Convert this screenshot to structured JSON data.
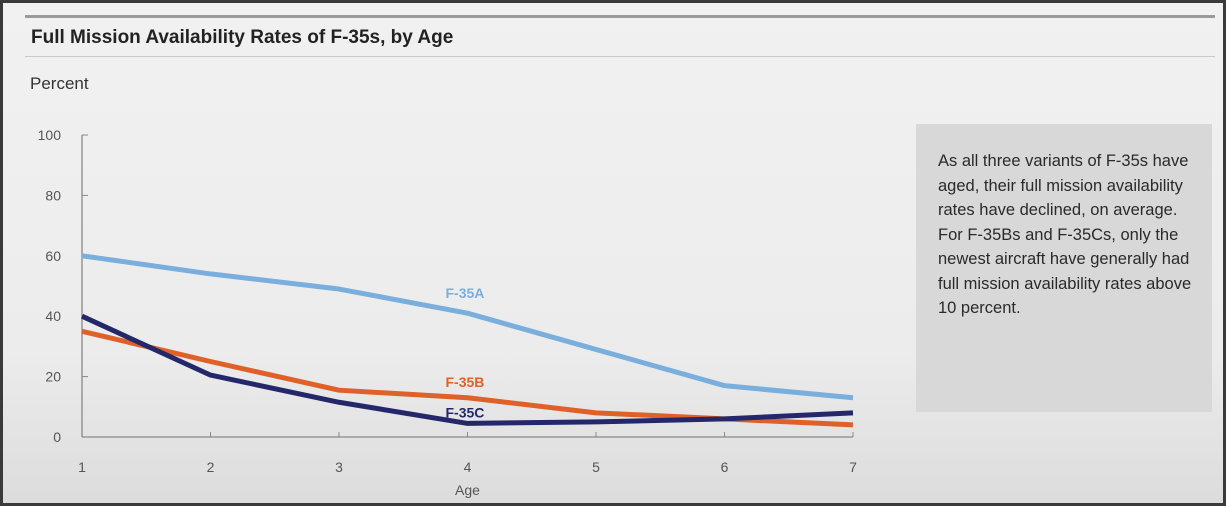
{
  "title": "Full Mission Availability Rates of F-35s, by Age",
  "note": "As all three variants of F-35s have aged, their full mission availability rates have declined, on average. For F-35Bs and F-35Cs, only the newest aircraft have generally had full mission availability rates above 10 percent.",
  "chart_data": {
    "type": "line",
    "title": "Full Mission Availability Rates of F-35s, by Age",
    "xlabel": "Age",
    "ylabel": "Percent",
    "x": [
      1,
      2,
      3,
      4,
      5,
      6,
      7
    ],
    "xlim": [
      1,
      7
    ],
    "ylim": [
      0,
      100
    ],
    "yticks": [
      0,
      20,
      40,
      60,
      80,
      100
    ],
    "grid": false,
    "legend": "inline labels",
    "series": [
      {
        "name": "F-35A",
        "color": "#7aaedc",
        "values": [
          60,
          54,
          49,
          41,
          29,
          17,
          13
        ]
      },
      {
        "name": "F-35B",
        "color": "#e0602a",
        "values": [
          35,
          25,
          15.5,
          13,
          8,
          6,
          4
        ]
      },
      {
        "name": "F-35C",
        "color": "#24286a",
        "values": [
          40,
          20.5,
          11.5,
          4.5,
          5,
          6,
          8
        ]
      }
    ]
  }
}
